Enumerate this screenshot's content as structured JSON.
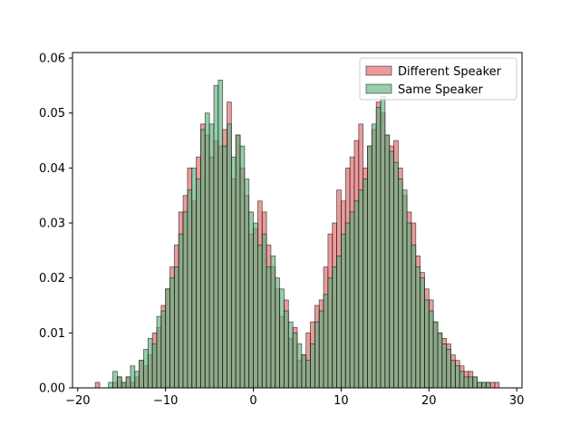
{
  "chart_data": {
    "type": "bar",
    "title": "",
    "xlabel": "",
    "ylabel": "",
    "xlim": [
      -20.6,
      30.6
    ],
    "ylim": [
      0,
      0.061
    ],
    "grid": false,
    "legend_position": "top-right",
    "x_ticks": [
      -20,
      -10,
      0,
      10,
      20,
      30
    ],
    "x_tick_labels": [
      "−20",
      "−10",
      "0",
      "10",
      "20",
      "30"
    ],
    "y_ticks": [
      0.0,
      0.01,
      0.02,
      0.03,
      0.04,
      0.05,
      0.06
    ],
    "y_tick_labels": [
      "0.00",
      "0.01",
      "0.02",
      "0.03",
      "0.04",
      "0.05",
      "0.06"
    ],
    "bin_width": 0.5,
    "x": [
      -18,
      -17.5,
      -17,
      -16.5,
      -16,
      -15.5,
      -15,
      -14.5,
      -14,
      -13.5,
      -13,
      -12.5,
      -12,
      -11.5,
      -11,
      -10.5,
      -10,
      -9.5,
      -9,
      -8.5,
      -8,
      -7.5,
      -7,
      -6.5,
      -6,
      -5.5,
      -5,
      -4.5,
      -4,
      -3.5,
      -3,
      -2.5,
      -2,
      -1.5,
      -1,
      -0.5,
      0,
      0.5,
      1,
      1.5,
      2,
      2.5,
      3,
      3.5,
      4,
      4.5,
      5,
      5.5,
      6,
      6.5,
      7,
      7.5,
      8,
      8.5,
      9,
      9.5,
      10,
      10.5,
      11,
      11.5,
      12,
      12.5,
      13,
      13.5,
      14,
      14.5,
      15,
      15.5,
      16,
      16.5,
      17,
      17.5,
      18,
      18.5,
      19,
      19.5,
      20,
      20.5,
      21,
      21.5,
      22,
      22.5,
      23,
      23.5,
      24,
      24.5,
      25,
      25.5,
      26,
      26.5,
      27,
      27.5
    ],
    "series": [
      {
        "name": "Different Speaker",
        "color": "#e06666",
        "values": [
          0.001,
          0.0,
          0.0,
          0.0,
          0.001,
          0.002,
          0.001,
          0.002,
          0.001,
          0.002,
          0.005,
          0.004,
          0.006,
          0.01,
          0.011,
          0.015,
          0.018,
          0.022,
          0.026,
          0.032,
          0.035,
          0.04,
          0.034,
          0.042,
          0.048,
          0.046,
          0.042,
          0.045,
          0.044,
          0.047,
          0.052,
          0.038,
          0.046,
          0.04,
          0.035,
          0.028,
          0.029,
          0.034,
          0.032,
          0.026,
          0.022,
          0.018,
          0.013,
          0.016,
          0.009,
          0.011,
          0.005,
          0.006,
          0.01,
          0.012,
          0.015,
          0.016,
          0.022,
          0.028,
          0.03,
          0.036,
          0.034,
          0.04,
          0.042,
          0.045,
          0.048,
          0.04,
          0.044,
          0.047,
          0.052,
          0.05,
          0.046,
          0.044,
          0.045,
          0.04,
          0.035,
          0.032,
          0.03,
          0.024,
          0.021,
          0.018,
          0.016,
          0.012,
          0.01,
          0.009,
          0.008,
          0.006,
          0.005,
          0.004,
          0.003,
          0.003,
          0.002,
          0.001,
          0.001,
          0.001,
          0.001,
          0.001
        ]
      },
      {
        "name": "Same Speaker",
        "color": "#5fb17f",
        "values": [
          0.0,
          0.0,
          0.0,
          0.001,
          0.003,
          0.002,
          0.001,
          0.002,
          0.004,
          0.003,
          0.005,
          0.007,
          0.009,
          0.008,
          0.013,
          0.014,
          0.018,
          0.02,
          0.022,
          0.028,
          0.032,
          0.036,
          0.04,
          0.038,
          0.047,
          0.05,
          0.048,
          0.055,
          0.056,
          0.044,
          0.048,
          0.042,
          0.046,
          0.044,
          0.038,
          0.032,
          0.03,
          0.026,
          0.028,
          0.022,
          0.024,
          0.02,
          0.018,
          0.014,
          0.012,
          0.01,
          0.008,
          0.006,
          0.005,
          0.008,
          0.012,
          0.014,
          0.017,
          0.02,
          0.022,
          0.024,
          0.028,
          0.03,
          0.032,
          0.034,
          0.036,
          0.038,
          0.044,
          0.048,
          0.051,
          0.053,
          0.046,
          0.043,
          0.041,
          0.038,
          0.036,
          0.03,
          0.026,
          0.022,
          0.02,
          0.016,
          0.014,
          0.012,
          0.01,
          0.008,
          0.007,
          0.005,
          0.004,
          0.003,
          0.002,
          0.002,
          0.002,
          0.001,
          0.001,
          0.001,
          0.0,
          0.0
        ]
      }
    ]
  }
}
